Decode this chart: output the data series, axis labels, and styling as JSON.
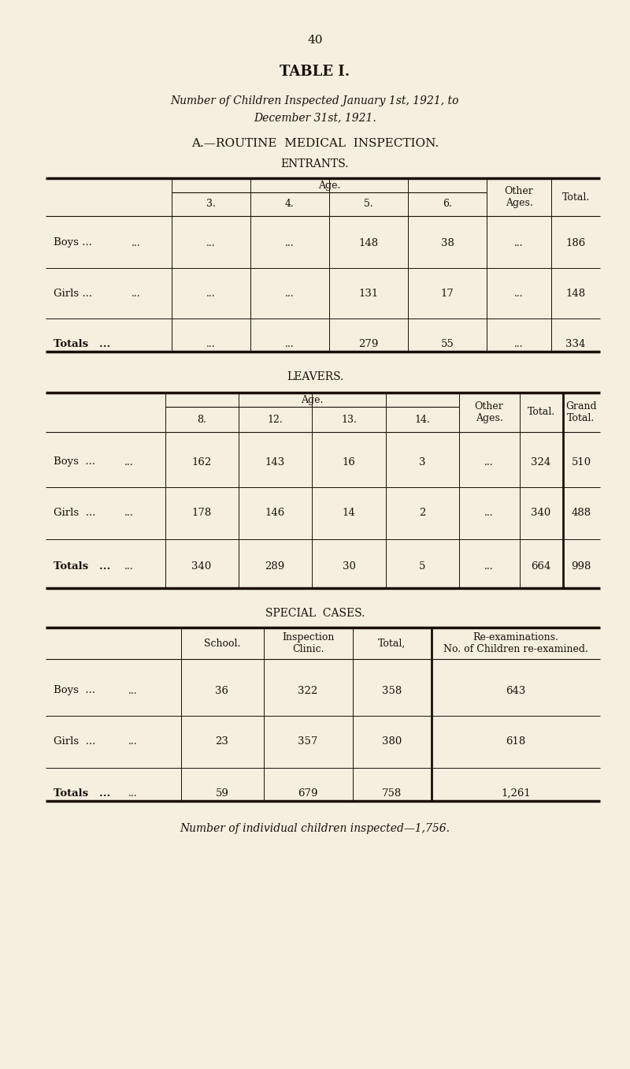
{
  "bg_color": "#f5efe0",
  "text_color": "#1a0f08",
  "page_number": "40",
  "title": "TABLE I.",
  "subtitle_line1": "Number of Children Inspected January 1st, 1921, to",
  "subtitle_line2": "December 31st, 1921.",
  "section_title": "A.—ROUTINE  MEDICAL  INSPECTION.",
  "entrants_title": "ENTRANTS.",
  "leavers_title": "LEAVERS.",
  "special_title": "SPECIAL  CASES.",
  "footer": "Number of individual children inspected—1,756."
}
